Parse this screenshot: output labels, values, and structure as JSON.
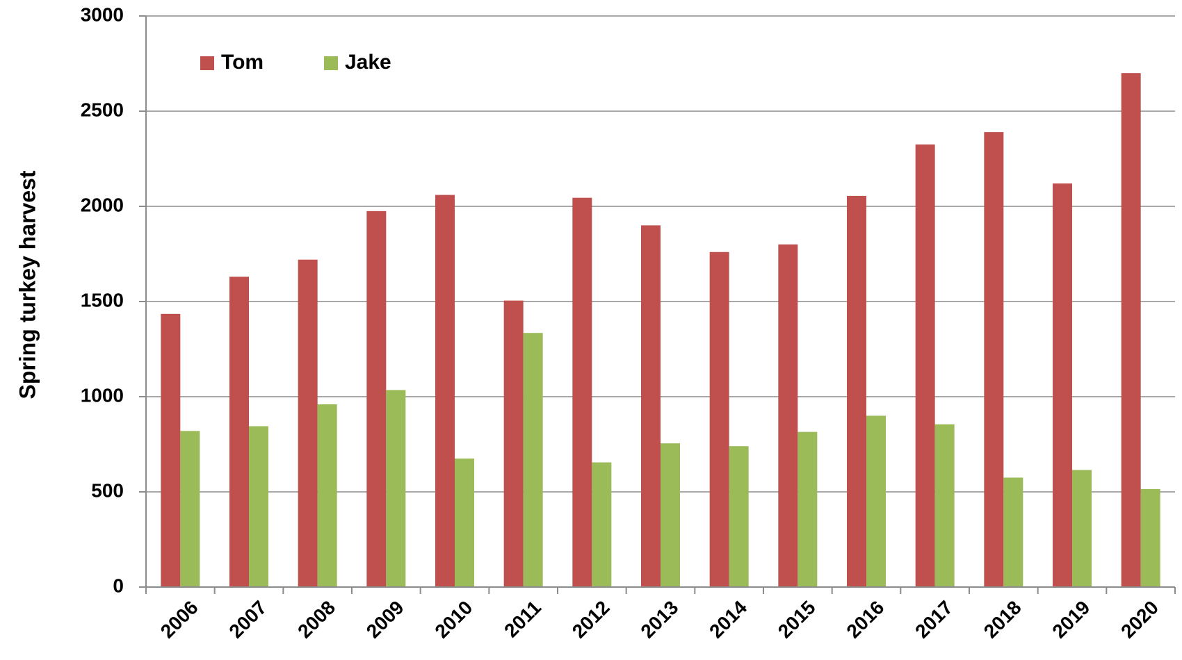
{
  "chart_data": {
    "type": "bar",
    "categories": [
      "2006",
      "2007",
      "2008",
      "2009",
      "2010",
      "2011",
      "2012",
      "2013",
      "2014",
      "2015",
      "2016",
      "2017",
      "2018",
      "2019",
      "2020"
    ],
    "series": [
      {
        "name": "Tom",
        "color": "#C0504D",
        "values": [
          1435,
          1630,
          1720,
          1975,
          2060,
          1505,
          2045,
          1900,
          1760,
          1800,
          2055,
          2325,
          2390,
          2120,
          2700
        ]
      },
      {
        "name": "Jake",
        "color": "#9BBB59",
        "values": [
          820,
          845,
          960,
          1035,
          675,
          1335,
          655,
          755,
          740,
          815,
          900,
          855,
          575,
          615,
          515
        ]
      }
    ],
    "title": "",
    "xlabel": "",
    "ylabel": "Spring turkey harvest",
    "ylim": [
      0,
      3000
    ],
    "yticks": [
      0,
      500,
      1000,
      1500,
      2000,
      2500,
      3000
    ],
    "grid": true,
    "legend_position": "top-left"
  }
}
